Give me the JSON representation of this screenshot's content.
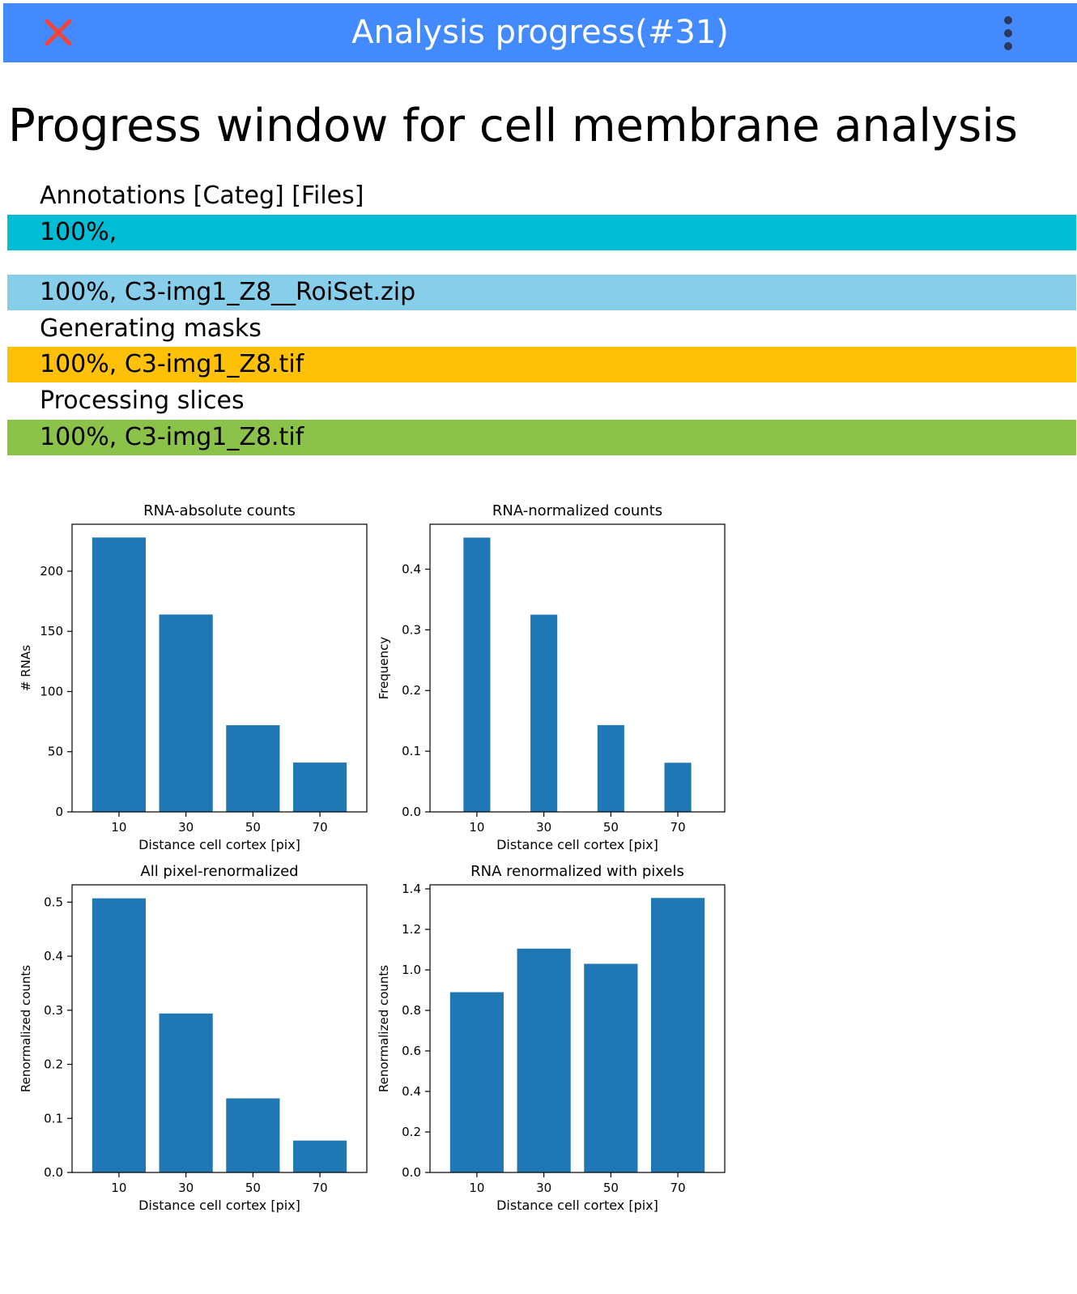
{
  "window": {
    "title": "Analysis progress(#31)",
    "close_icon": "close-icon",
    "menu_icon": "more-vert-icon",
    "accent": "#448aff",
    "close_color": "#f44336"
  },
  "page": {
    "title": "Progress window for cell membrane analysis"
  },
  "progress": [
    {
      "label": "Annotations [Categ] [Files]",
      "text": "100%,",
      "value": 100,
      "color": "#00bcd4"
    },
    {
      "label": "",
      "text": "100%, C3-img1_Z8__RoiSet.zip",
      "value": 100,
      "color": "#87ceeb"
    },
    {
      "label": "Generating masks",
      "text": "100%, C3-img1_Z8.tif",
      "value": 100,
      "color": "#ffc107"
    },
    {
      "label": "Processing slices",
      "text": "100%, C3-img1_Z8.tif",
      "value": 100,
      "color": "#8bc34a"
    }
  ],
  "chart_data": [
    {
      "type": "bar",
      "title": "RNA-absolute counts",
      "categories": [
        "10",
        "30",
        "50",
        "70"
      ],
      "values": [
        228,
        164,
        72,
        41
      ],
      "xlabel": "Distance cell cortex [pix]",
      "ylabel": "# RNAs",
      "ylim": [
        0,
        239
      ],
      "yticks": [
        0,
        50,
        100,
        150,
        200
      ],
      "ytick_labels": [
        "0",
        "50",
        "100",
        "150",
        "200"
      ],
      "bar_width": 0.8,
      "grid": false,
      "color": "#1f77b4"
    },
    {
      "type": "bar",
      "title": "RNA-normalized counts",
      "categories": [
        "10",
        "30",
        "50",
        "70"
      ],
      "values": [
        0.452,
        0.325,
        0.143,
        0.081
      ],
      "xlabel": "Distance cell cortex [pix]",
      "ylabel": "Frequency",
      "ylim": [
        0,
        0.474
      ],
      "yticks": [
        0,
        0.1,
        0.2,
        0.3,
        0.4
      ],
      "ytick_labels": [
        "0.0",
        "0.1",
        "0.2",
        "0.3",
        "0.4"
      ],
      "bar_width": 0.4,
      "grid": false,
      "color": "#1f77b4"
    },
    {
      "type": "bar",
      "title": "All pixel-renormalized",
      "categories": [
        "10",
        "30",
        "50",
        "70"
      ],
      "values": [
        0.507,
        0.294,
        0.137,
        0.059
      ],
      "xlabel": "Distance cell cortex [pix]",
      "ylabel": "Renormalized counts",
      "ylim": [
        0,
        0.532
      ],
      "yticks": [
        0,
        0.1,
        0.2,
        0.3,
        0.4,
        0.5
      ],
      "ytick_labels": [
        "0.0",
        "0.1",
        "0.2",
        "0.3",
        "0.4",
        "0.5"
      ],
      "bar_width": 0.8,
      "grid": false,
      "color": "#1f77b4"
    },
    {
      "type": "bar",
      "title": "RNA renormalized with pixels",
      "categories": [
        "10",
        "30",
        "50",
        "70"
      ],
      "values": [
        0.89,
        1.105,
        1.03,
        1.355
      ],
      "xlabel": "Distance cell cortex [pix]",
      "ylabel": "Renormalized counts",
      "ylim": [
        0,
        1.42
      ],
      "yticks": [
        0,
        0.2,
        0.4,
        0.6,
        0.8,
        1.0,
        1.2,
        1.4
      ],
      "ytick_labels": [
        "0.0",
        "0.2",
        "0.4",
        "0.6",
        "0.8",
        "1.0",
        "1.2",
        "1.4"
      ],
      "bar_width": 0.8,
      "grid": false,
      "color": "#1f77b4"
    }
  ]
}
